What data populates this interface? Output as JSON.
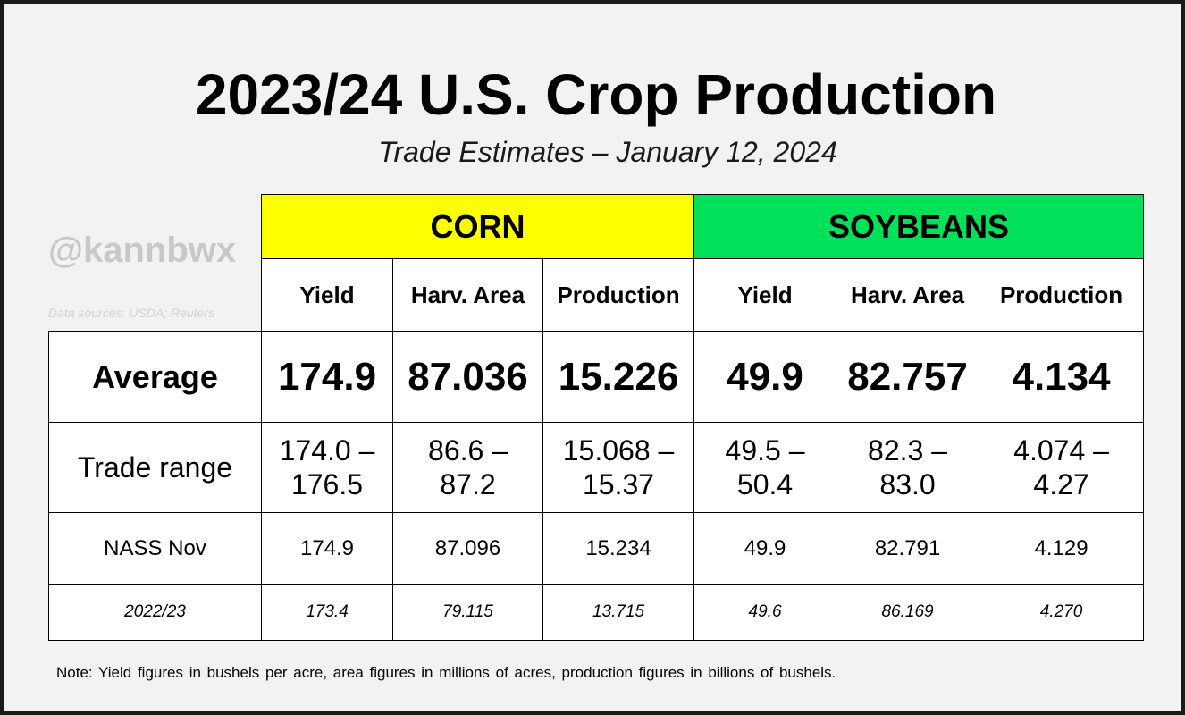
{
  "title": "2023/24 U.S. Crop Production",
  "subtitle": "Trade Estimates – January 12, 2024",
  "watermark": "@kannbwx",
  "sources": "Data sources: USDA; Reuters",
  "crops": [
    "CORN",
    "SOYBEANS"
  ],
  "colors": {
    "corn": "#ffff00",
    "soybeans": "#00e15a",
    "frame": "#f2f2f2"
  },
  "columns": [
    "Yield",
    "Harv. Area",
    "Production",
    "Yield",
    "Harv. Area",
    "Production"
  ],
  "rows": {
    "average": {
      "label": "Average",
      "values": [
        "174.9",
        "87.036",
        "15.226",
        "49.9",
        "82.757",
        "4.134"
      ]
    },
    "trade_range": {
      "label": "Trade range",
      "values": [
        [
          "174.0 –",
          "176.5"
        ],
        [
          "86.6 –",
          "87.2"
        ],
        [
          "15.068 –",
          "15.37"
        ],
        [
          "49.5 –",
          "50.4"
        ],
        [
          "82.3 –",
          "83.0"
        ],
        [
          "4.074 –",
          "4.27"
        ]
      ]
    },
    "nass_nov": {
      "label": "NASS Nov",
      "values": [
        "174.9",
        "87.096",
        "15.234",
        "49.9",
        "82.791",
        "4.129"
      ]
    },
    "prior_year": {
      "label": "2022/23",
      "values": [
        "173.4",
        "79.115",
        "13.715",
        "49.6",
        "86.169",
        "4.270"
      ]
    }
  },
  "note": "Note: Yield figures in bushels per acre, area figures in millions of acres, production figures in billions of bushels."
}
